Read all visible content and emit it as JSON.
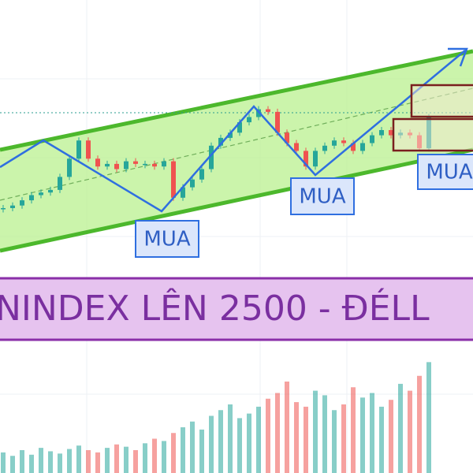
{
  "chart_data": {
    "type": "candlestick",
    "title": "NINDEX LÊN 2500 - ĐÉLL",
    "annotations": [
      "MUA",
      "MUA",
      "MUA"
    ],
    "close": [
      20,
      21,
      23,
      25,
      26,
      27,
      32,
      39,
      46,
      39,
      36,
      37,
      35,
      38,
      37,
      37,
      36,
      38,
      24,
      28,
      31,
      35,
      44,
      47,
      49,
      53,
      55,
      58,
      57,
      49,
      45,
      42,
      36,
      42,
      44,
      46,
      45,
      42,
      45,
      48,
      50,
      48,
      49,
      48,
      43,
      55
    ],
    "ylim": [
      0,
      100
    ],
    "volume": [
      18,
      15,
      20,
      16,
      22,
      19,
      17,
      21,
      24,
      20,
      18,
      22,
      25,
      23,
      20,
      26,
      30,
      28,
      35,
      40,
      45,
      38,
      50,
      55,
      60,
      48,
      52,
      58,
      65,
      70,
      80,
      62,
      58,
      72,
      68,
      55,
      60,
      75,
      66,
      70,
      58,
      64,
      78,
      72,
      85,
      97
    ],
    "volume_ylim": [
      0,
      100
    ],
    "colors": {
      "up": "#26a69a",
      "down": "#ef5350"
    }
  }
}
